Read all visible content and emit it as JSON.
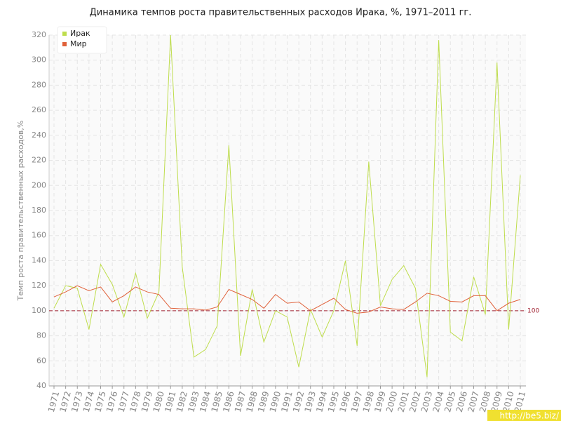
{
  "chart_data": {
    "type": "line",
    "title": "Динамика темпов роста правительственных расходов Ирака, %, 1971–2011 гг.",
    "y_label": "Темп роста правительственных расходов,%",
    "categories": [
      "1971",
      "1972",
      "1973",
      "1974",
      "1975",
      "1976",
      "1977",
      "1978",
      "1979",
      "1980",
      "1981",
      "1982",
      "1983",
      "1984",
      "1985",
      "1986",
      "1987",
      "1988",
      "1989",
      "1990",
      "1991",
      "1992",
      "1993",
      "1994",
      "1995",
      "1996",
      "1997",
      "1998",
      "1999",
      "2000",
      "2001",
      "2002",
      "2003",
      "2004",
      "2005",
      "2006",
      "2007",
      "2008",
      "2009",
      "2010",
      "2011"
    ],
    "series": [
      {
        "name": "Ирак",
        "color": "#bedd4c",
        "values": [
          102,
          120,
          118,
          85,
          137,
          121,
          95,
          130,
          94,
          115,
          320,
          135,
          63,
          69,
          88,
          232,
          64,
          117,
          75,
          100,
          95,
          55,
          101,
          79,
          100,
          140,
          72,
          219,
          104,
          125,
          136,
          118,
          47,
          316,
          83,
          76,
          127,
          97,
          298,
          85,
          208
        ]
      },
      {
        "name": "Мир",
        "color": "#e0613a",
        "values": [
          111,
          115,
          120,
          116,
          119,
          107,
          112,
          119,
          115,
          113,
          102,
          101.5,
          101.5,
          100.5,
          103,
          117,
          113,
          109,
          102,
          113,
          106,
          107,
          100,
          105,
          110,
          101,
          98,
          99,
          103,
          101.5,
          101,
          107,
          114,
          112,
          107.5,
          107,
          112,
          112,
          100,
          106,
          109
        ]
      }
    ],
    "ylim": [
      40,
      320
    ],
    "yticks": [
      40,
      60,
      80,
      100,
      120,
      140,
      160,
      180,
      200,
      220,
      240,
      260,
      280,
      300,
      320
    ],
    "reference_line": 100,
    "reference_color": "#a02030",
    "grid": true,
    "legend": "top-left",
    "watermark": "http://be5.biz/"
  }
}
